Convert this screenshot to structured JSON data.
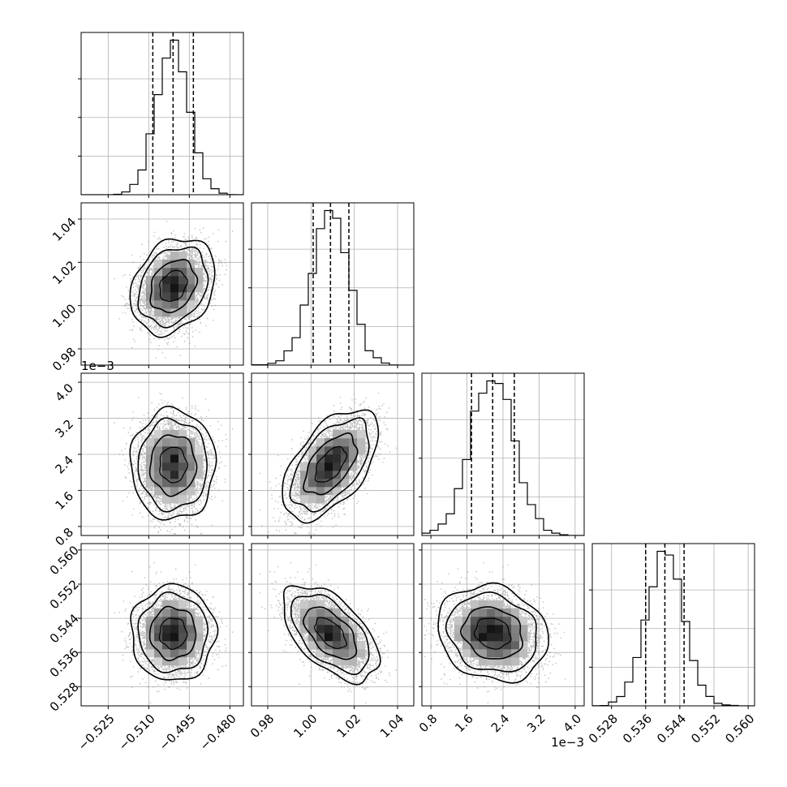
{
  "chart_data": {
    "type": "corner",
    "parameters": [
      {
        "range": [
          -0.535,
          -0.475
        ],
        "ticks": [
          -0.525,
          -0.51,
          -0.495,
          -0.48
        ],
        "tick_labels": [
          "−0.525",
          "−0.510",
          "−0.495",
          "−0.480"
        ],
        "offset_label": "",
        "mean": -0.501,
        "sd": 0.006,
        "quantiles": [
          -0.5085,
          -0.501,
          -0.4935
        ]
      },
      {
        "range": [
          0.9725,
          1.0475
        ],
        "ticks": [
          0.98,
          1.0,
          1.02,
          1.04
        ],
        "tick_labels": [
          "0.98",
          "1.00",
          "1.02",
          "1.04"
        ],
        "offset_label": "",
        "mean": 1.009,
        "sd": 0.0085,
        "quantiles": [
          1.001,
          1.009,
          1.0175
        ]
      },
      {
        "range": [
          0.6,
          4.2
        ],
        "ticks": [
          0.8,
          1.6,
          2.4,
          3.2,
          4.0
        ],
        "tick_labels": [
          "0.8",
          "1.6",
          "2.4",
          "3.2",
          "4.0"
        ],
        "offset_label": "1e−3",
        "mean": 2.17,
        "sd": 0.47,
        "quantiles": [
          1.7,
          2.17,
          2.65
        ]
      },
      {
        "range": [
          0.5235,
          0.5615
        ],
        "ticks": [
          0.528,
          0.536,
          0.544,
          0.552,
          0.56
        ],
        "tick_labels": [
          "0.528",
          "0.536",
          "0.544",
          "0.552",
          "0.560"
        ],
        "offset_label": "",
        "mean": 0.5405,
        "sd": 0.0043,
        "quantiles": [
          0.536,
          0.5405,
          0.545
        ]
      }
    ],
    "correlations": [
      [
        1,
        0.25,
        0.0,
        0.0
      ],
      [
        0.25,
        1,
        0.55,
        -0.55
      ],
      [
        0.0,
        0.55,
        1,
        -0.15
      ],
      [
        0.0,
        -0.55,
        -0.15,
        1
      ]
    ],
    "n_samples": 6000,
    "histogram_bins": 20,
    "grid": true,
    "colors": {
      "line": "#000000",
      "scatter": "#8c8c8c",
      "grid": "#b0b0b0"
    }
  }
}
